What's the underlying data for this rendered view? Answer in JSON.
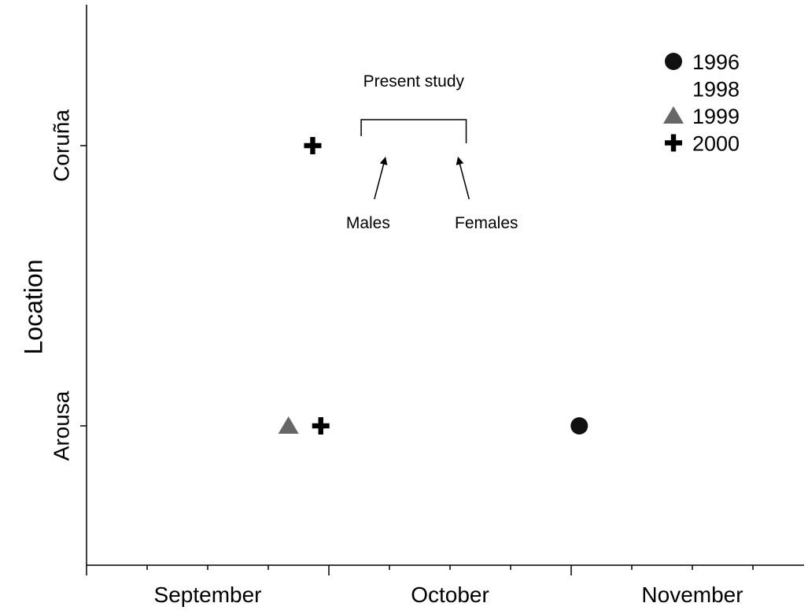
{
  "chart_data": {
    "type": "scatter",
    "title": "",
    "xlabel": "",
    "ylabel": "Location",
    "x_categories": [
      "September",
      "October",
      "November"
    ],
    "y_categories": [
      "Arousa",
      "Coruña"
    ],
    "xlim_days": [
      0,
      90
    ],
    "x_major_ticks_days": [
      0,
      30,
      60,
      90
    ],
    "x_minor_tick_interval_days": 7.5,
    "grid": false,
    "legend_position": "top-right",
    "series": [
      {
        "name": "1996",
        "marker": "circle",
        "color": "#111111",
        "points": [
          {
            "x_month": "November",
            "x_day": 1,
            "y": "Arousa"
          }
        ]
      },
      {
        "name": "1998",
        "marker": "none",
        "color": "#111111",
        "points": []
      },
      {
        "name": "1999",
        "marker": "triangle",
        "color": "#666666",
        "points": [
          {
            "x_month": "September",
            "x_day": 25,
            "y": "Arousa"
          }
        ]
      },
      {
        "name": "2000",
        "marker": "plus",
        "color": "#000000",
        "points": [
          {
            "x_month": "September",
            "x_day": 28,
            "y": "Coruña"
          },
          {
            "x_month": "September",
            "x_day": 29,
            "y": "Arousa"
          }
        ]
      }
    ],
    "annotations": {
      "bracket_label": "Present study",
      "bracket_start": {
        "x_month": "October",
        "x_day": 4
      },
      "bracket_end": {
        "x_month": "October",
        "x_day": 17
      },
      "arrows": [
        {
          "label": "Males",
          "target": {
            "x_month": "October",
            "x_day": 7
          }
        },
        {
          "label": "Females",
          "target": {
            "x_month": "October",
            "x_day": 16
          }
        }
      ]
    }
  }
}
